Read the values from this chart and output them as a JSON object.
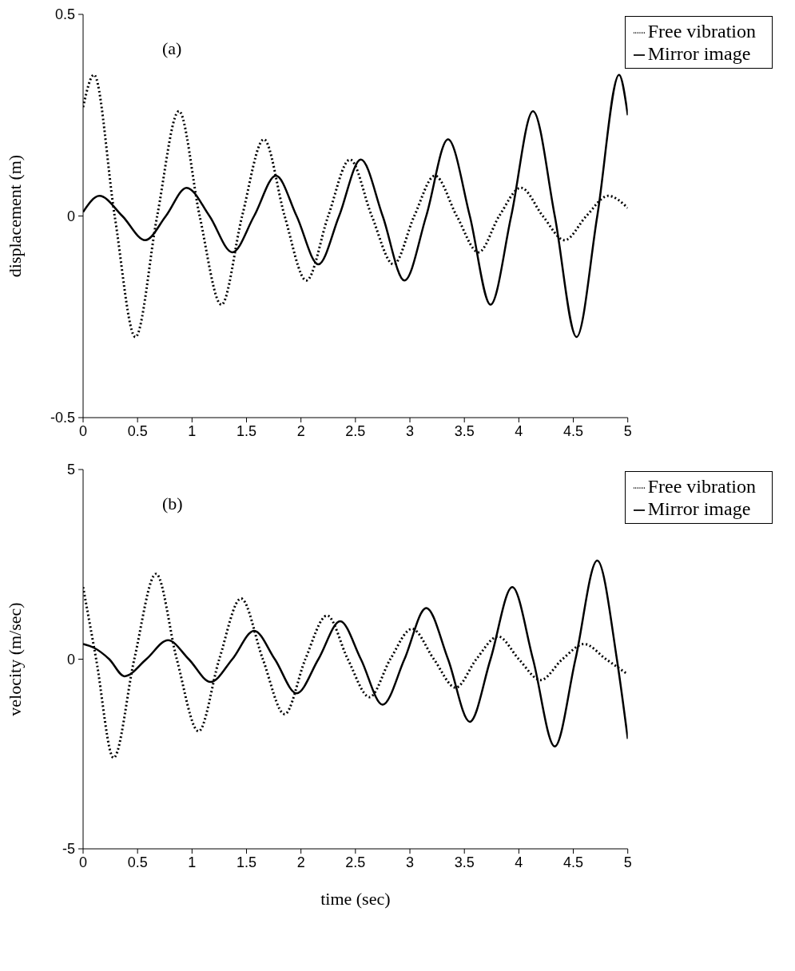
{
  "chart_data": [
    {
      "type": "line",
      "ylabel": "displacement (m)",
      "annotations": [
        "(a)"
      ],
      "xlim": [
        0,
        5
      ],
      "xticks": [
        0,
        0.5,
        1,
        1.5,
        2,
        2.5,
        3,
        3.5,
        4,
        4.5,
        5
      ],
      "ylim": [
        -0.5,
        0.5
      ],
      "yticks": [
        -0.5,
        0,
        0.5
      ],
      "grid": false,
      "legend": "top right",
      "marker": "none",
      "series": [
        {
          "name": "Free vibration",
          "color": "#000000",
          "line_style": "dotted",
          "x": [
            0,
            0.1,
            0.29,
            0.48,
            0.68,
            0.88,
            1.07,
            1.27,
            1.46,
            1.66,
            1.85,
            2.05,
            2.25,
            2.45,
            2.65,
            2.85,
            3.04,
            3.23,
            3.43,
            3.63,
            3.82,
            4.02,
            4.22,
            4.42,
            4.62,
            4.82,
            5
          ],
          "values": [
            0.27,
            0.35,
            0,
            -0.3,
            0,
            0.26,
            0,
            -0.22,
            0,
            0.19,
            0,
            -0.16,
            0,
            0.14,
            0,
            -0.12,
            0,
            0.1,
            0,
            -0.09,
            0,
            0.07,
            0,
            -0.06,
            0,
            0.05,
            0.02
          ]
        },
        {
          "name": "Mirror image",
          "color": "#000000",
          "line_style": "solid",
          "x": [
            0,
            0.15,
            0.36,
            0.57,
            0.76,
            0.95,
            1.16,
            1.37,
            1.57,
            1.77,
            1.96,
            2.16,
            2.35,
            2.55,
            2.75,
            2.95,
            3.15,
            3.35,
            3.55,
            3.74,
            3.93,
            4.13,
            4.33,
            4.53,
            4.72,
            4.92,
            5
          ],
          "values": [
            0.01,
            0.05,
            0,
            -0.06,
            0,
            0.07,
            0,
            -0.09,
            0,
            0.1,
            0,
            -0.12,
            0,
            0.14,
            0,
            -0.16,
            0,
            0.19,
            0,
            -0.22,
            0,
            0.26,
            0,
            -0.3,
            0,
            0.35,
            0.25
          ]
        }
      ]
    },
    {
      "type": "line",
      "xlabel": "time (sec)",
      "ylabel": "velocity (m/sec)",
      "annotations": [
        "(b)"
      ],
      "xlim": [
        0,
        5
      ],
      "xticks": [
        0,
        0.5,
        1,
        1.5,
        2,
        2.5,
        3,
        3.5,
        4,
        4.5,
        5
      ],
      "ylim": [
        -5,
        5
      ],
      "yticks": [
        -5,
        0,
        5
      ],
      "grid": false,
      "legend": "top right",
      "marker": "none",
      "series": [
        {
          "name": "Free vibration",
          "color": "#000000",
          "line_style": "dotted",
          "x": [
            0,
            0.12,
            0.28,
            0.47,
            0.67,
            0.86,
            1.06,
            1.25,
            1.45,
            1.65,
            1.85,
            2.04,
            2.24,
            2.43,
            2.63,
            2.82,
            3.02,
            3.22,
            3.42,
            3.61,
            3.81,
            4.0,
            4.2,
            4.4,
            4.6,
            4.8,
            5
          ],
          "values": [
            1.9,
            0,
            -2.6,
            0,
            2.25,
            0,
            -1.9,
            0,
            1.6,
            0,
            -1.45,
            0,
            1.15,
            0,
            -1.0,
            0,
            0.8,
            0,
            -0.75,
            0,
            0.6,
            0,
            -0.55,
            0,
            0.4,
            0,
            -0.4
          ]
        },
        {
          "name": "Mirror image",
          "color": "#000000",
          "line_style": "solid",
          "x": [
            0,
            0.1,
            0.24,
            0.38,
            0.58,
            0.78,
            0.97,
            1.17,
            1.37,
            1.57,
            1.76,
            1.96,
            2.16,
            2.36,
            2.55,
            2.75,
            2.95,
            3.15,
            3.35,
            3.55,
            3.74,
            3.94,
            4.13,
            4.33,
            4.52,
            4.72,
            4.9,
            5
          ],
          "values": [
            0.4,
            0.3,
            0,
            -0.45,
            0,
            0.5,
            0,
            -0.6,
            0,
            0.75,
            0,
            -0.9,
            0,
            1.0,
            0,
            -1.2,
            0,
            1.35,
            0,
            -1.65,
            0,
            1.9,
            0,
            -2.3,
            0,
            2.6,
            0,
            -2.1
          ]
        }
      ]
    }
  ]
}
